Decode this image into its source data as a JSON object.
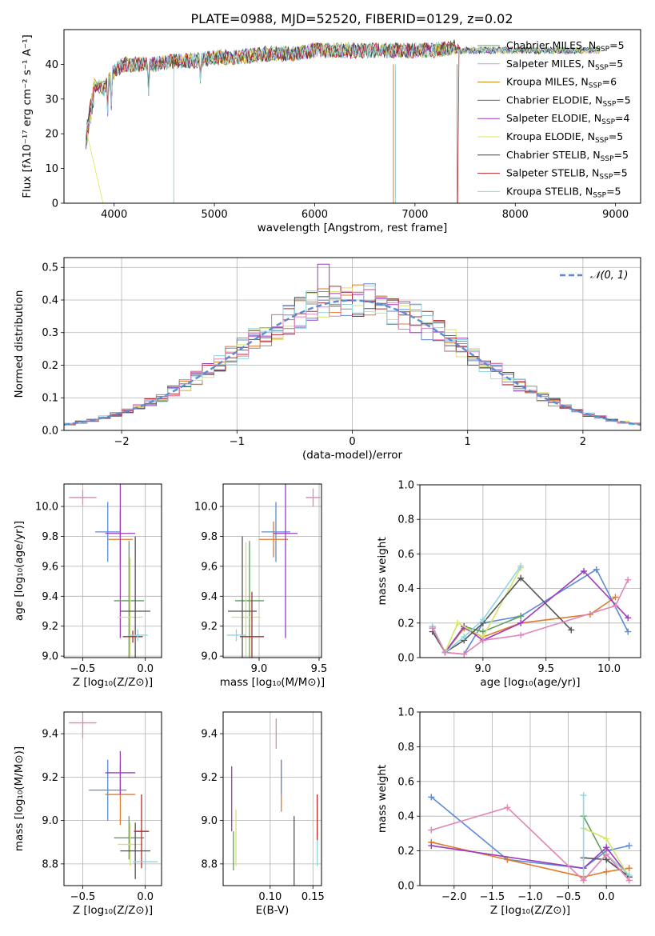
{
  "figure": {
    "title": "PLATE=0988, MJD=52520, FIBERID=0129, z=0.02"
  },
  "colors": {
    "c0": "#5b8bd6",
    "c1": "#e07a2c",
    "c2": "#5f9e5f",
    "c3": "#9b3bbd",
    "c4": "#d5e36a",
    "c5": "#555555",
    "c6": "#b52a2a",
    "c7": "#8fd6e0",
    "c8": "#e085b5",
    "c9": "#b8860b"
  },
  "chart_data": [
    {
      "id": "spectrum",
      "type": "line",
      "xlabel": "wavelength [Angstrom, rest frame]",
      "ylabel": "Flux [fλ10⁻¹⁷ erg cm⁻² s⁻¹ A⁻¹]",
      "xlim": [
        3500,
        9250
      ],
      "ylim": [
        0,
        50
      ],
      "xticks": [
        4000,
        5000,
        6000,
        7000,
        8000,
        9000
      ],
      "yticks": [
        0,
        10,
        20,
        30,
        40
      ],
      "grid": false,
      "legend_position": "right",
      "approx_continuum": {
        "x": [
          3720,
          3800,
          3900,
          4000,
          4100,
          4200,
          4400,
          4600,
          4800,
          5000,
          5200,
          5500,
          5800,
          6000,
          6300,
          6600,
          6800,
          7000,
          7200,
          7400
        ],
        "y": [
          22,
          34,
          33,
          38,
          40,
          40,
          40,
          41,
          41,
          42,
          42,
          43,
          43,
          44,
          44,
          44,
          44,
          44,
          44,
          45
        ]
      },
      "series": [
        {
          "name": "Chabrier MILES, N_SSP=5",
          "label_main": "Chabrier MILES, N",
          "label_sub": "SSP",
          "label_end": "=5",
          "color": "#5f9e5f"
        },
        {
          "name": "Salpeter MILES, N_SSP=5",
          "label_main": "Salpeter MILES, N",
          "label_sub": "SSP",
          "label_end": "=5",
          "color": "#c79ae0"
        },
        {
          "name": "Kroupa MILES, N_SSP=6",
          "label_main": "Kroupa MILES, N",
          "label_sub": "SSP",
          "label_end": "=6",
          "color": "#b8860b"
        },
        {
          "name": "Chabrier ELODIE, N_SSP=5",
          "label_main": "Chabrier ELODIE, N",
          "label_sub": "SSP",
          "label_end": "=5",
          "color": "#3f7f3f"
        },
        {
          "name": "Salpeter ELODIE, N_SSP=4",
          "label_main": "Salpeter ELODIE, N",
          "label_sub": "SSP",
          "label_end": "=4",
          "color": "#9b3bbd"
        },
        {
          "name": "Kroupa ELODIE, N_SSP=5",
          "label_main": "Kroupa ELODIE, N",
          "label_sub": "SSP",
          "label_end": "=5",
          "color": "#e3e35a"
        },
        {
          "name": "Chabrier STELIB, N_SSP=5",
          "label_main": "Chabrier STELIB, N",
          "label_sub": "SSP",
          "label_end": "=5",
          "color": "#444444"
        },
        {
          "name": "Salpeter STELIB, N_SSP=5",
          "label_main": "Salpeter STELIB, N",
          "label_sub": "SSP",
          "label_end": "=5",
          "color": "#b52a2a"
        },
        {
          "name": "Kroupa STELIB, N_SSP=5",
          "label_main": "Kroupa STELIB, N",
          "label_sub": "SSP",
          "label_end": "=5",
          "color": "#8fd6e0"
        }
      ]
    },
    {
      "id": "residuals",
      "type": "histogram",
      "xlabel": "(data-model)/error",
      "ylabel": "Normed distribution",
      "xlim": [
        -2.5,
        2.5
      ],
      "ylim": [
        0,
        0.53
      ],
      "xticks": [
        -2,
        -1,
        0,
        1,
        2
      ],
      "yticks": [
        0.0,
        0.1,
        0.2,
        0.3,
        0.4,
        0.5
      ],
      "grid": true,
      "bin_width": 0.1,
      "bins_from": -2.5,
      "legend": {
        "label": "𝒩(0, 1)",
        "position": "top-right"
      },
      "reference_curve": {
        "name": "N(0,1)",
        "mean": 0,
        "sigma": 1
      },
      "hist_colors": [
        "#5b8bd6",
        "#e07a2c",
        "#8a8a8a",
        "#9b3bbd",
        "#d5e36a",
        "#555555",
        "#b52a2a",
        "#8fd6e0",
        "#e085b5"
      ]
    },
    {
      "id": "age_vs_Z",
      "type": "errorbar",
      "xlabel": "Z [log₁₀(Z/Z⊙)]",
      "ylabel": "age  [log₁₀(age/yr)]",
      "xlim": [
        -0.65,
        0.13
      ],
      "ylim": [
        8.99,
        10.15
      ],
      "xticks": [
        -0.5,
        0.0
      ],
      "yticks": [
        9.0,
        9.2,
        9.4,
        9.6,
        9.8,
        10.0
      ],
      "grid": true,
      "points": [
        {
          "x": -0.5,
          "y": 10.06,
          "xerr": 0.11,
          "yerr": 0.05,
          "color": "#e085b5"
        },
        {
          "x": -0.3,
          "y": 9.83,
          "xerr": 0.1,
          "yerr": 0.2,
          "color": "#5b8bd6"
        },
        {
          "x": -0.2,
          "y": 9.78,
          "xerr": 0.1,
          "yerr": 0.2,
          "color": "#e07a2c"
        },
        {
          "x": -0.2,
          "y": 9.82,
          "xerr": 0.12,
          "yerr": 0.7,
          "color": "#9b3bbd"
        },
        {
          "x": -0.13,
          "y": 9.37,
          "xerr": 0.12,
          "yerr": 0.4,
          "color": "#5f9e5f"
        },
        {
          "x": -0.12,
          "y": 9.26,
          "xerr": 0.1,
          "yerr": 0.4,
          "color": "#d5e36a"
        },
        {
          "x": -0.08,
          "y": 9.3,
          "xerr": 0.12,
          "yerr": 0.5,
          "color": "#555555"
        },
        {
          "x": -0.1,
          "y": 9.13,
          "xerr": 0.08,
          "yerr": 0.04,
          "color": "#b52a2a"
        },
        {
          "x": -0.06,
          "y": 9.14,
          "xerr": 0.08,
          "yerr": 0.04,
          "color": "#8fd6e0"
        }
      ]
    },
    {
      "id": "age_vs_mass",
      "type": "errorbar",
      "xlabel": "mass [log₁₀(M/M⊙)]",
      "ylabel": "",
      "xlim": [
        8.7,
        9.52
      ],
      "ylim": [
        8.99,
        10.15
      ],
      "xticks": [
        9.0,
        9.5
      ],
      "yticks": [
        9.0,
        9.2,
        9.4,
        9.6,
        9.8,
        10.0
      ],
      "grid": true,
      "points": [
        {
          "x": 9.45,
          "y": 10.06,
          "xerr": 0.06,
          "yerr": 0.06,
          "color": "#e085b5"
        },
        {
          "x": 9.14,
          "y": 9.83,
          "xerr": 0.12,
          "yerr": 0.2,
          "color": "#5b8bd6"
        },
        {
          "x": 9.12,
          "y": 9.78,
          "xerr": 0.12,
          "yerr": 0.12,
          "color": "#e07a2c"
        },
        {
          "x": 9.22,
          "y": 9.82,
          "xerr": 0.1,
          "yerr": 0.7,
          "color": "#9b3bbd"
        },
        {
          "x": 8.92,
          "y": 9.37,
          "xerr": 0.12,
          "yerr": 0.4,
          "color": "#5f9e5f"
        },
        {
          "x": 8.89,
          "y": 9.26,
          "xerr": 0.12,
          "yerr": 0.5,
          "color": "#d5e36a"
        },
        {
          "x": 8.86,
          "y": 9.3,
          "xerr": 0.12,
          "yerr": 0.5,
          "color": "#555555"
        },
        {
          "x": 8.94,
          "y": 9.13,
          "xerr": 0.1,
          "yerr": 0.3,
          "color": "#b52a2a"
        },
        {
          "x": 8.81,
          "y": 9.14,
          "xerr": 0.08,
          "yerr": 0.04,
          "color": "#8fd6e0"
        }
      ]
    },
    {
      "id": "weight_vs_age",
      "type": "line",
      "xlabel": "age  [log₁₀(age/yr)]",
      "ylabel": "mass weight",
      "xlim": [
        8.5,
        10.25
      ],
      "ylim": [
        0,
        1.0
      ],
      "xticks": [
        9.0,
        9.5,
        10.0
      ],
      "yticks": [
        0.0,
        0.2,
        0.4,
        0.6,
        0.8,
        1.0
      ],
      "grid": true,
      "series": [
        {
          "color": "#5b8bd6",
          "x": [
            8.6,
            8.7,
            8.85,
            9.0,
            9.3,
            9.9,
            10.15
          ],
          "y": [
            0.18,
            0.03,
            0.02,
            0.2,
            0.24,
            0.51,
            0.15
          ]
        },
        {
          "color": "#e07a2c",
          "x": [
            8.6,
            8.7,
            8.85,
            9.0,
            9.3,
            9.85,
            10.05
          ],
          "y": [
            0.17,
            0.03,
            0.17,
            0.12,
            0.2,
            0.25,
            0.35
          ]
        },
        {
          "color": "#5f9e5f",
          "x": [
            8.6,
            8.7,
            8.85,
            9.0,
            9.3
          ],
          "y": [
            0.17,
            0.03,
            0.18,
            0.15,
            0.24
          ]
        },
        {
          "color": "#9b3bbd",
          "x": [
            8.6,
            8.7,
            8.85,
            9.0,
            9.3,
            9.8,
            10.15
          ],
          "y": [
            0.17,
            0.03,
            0.18,
            0.1,
            0.2,
            0.5,
            0.23
          ]
        },
        {
          "color": "#d5e36a",
          "x": [
            8.6,
            8.7,
            8.8,
            9.0,
            9.3
          ],
          "y": [
            0.18,
            0.03,
            0.2,
            0.12,
            0.52
          ]
        },
        {
          "color": "#555555",
          "x": [
            8.6,
            8.7,
            8.85,
            9.0,
            9.3,
            9.7
          ],
          "y": [
            0.15,
            0.03,
            0.1,
            0.2,
            0.46,
            0.16
          ]
        },
        {
          "color": "#8fd6e0",
          "x": [
            8.6,
            8.7,
            8.85,
            9.0,
            9.3
          ],
          "y": [
            0.18,
            0.03,
            0.12,
            0.22,
            0.53
          ]
        },
        {
          "color": "#e085b5",
          "x": [
            8.6,
            8.7,
            8.85,
            9.0,
            9.3,
            10.05,
            10.15
          ],
          "y": [
            0.17,
            0.03,
            0.02,
            0.1,
            0.13,
            0.3,
            0.45
          ]
        }
      ]
    },
    {
      "id": "mass_vs_Z",
      "type": "errorbar",
      "xlabel": "Z [log₁₀(Z/Z⊙)]",
      "ylabel": "mass [log₁₀(M/M⊙)]",
      "xlim": [
        -0.65,
        0.13
      ],
      "ylim": [
        8.7,
        9.5
      ],
      "xticks": [
        -0.5,
        0.0
      ],
      "yticks": [
        8.8,
        9.0,
        9.2,
        9.4
      ],
      "grid": true,
      "points": [
        {
          "x": -0.5,
          "y": 9.45,
          "xerr": 0.11,
          "yerr": 0.07,
          "color": "#e085b5"
        },
        {
          "x": -0.3,
          "y": 9.14,
          "xerr": 0.15,
          "yerr": 0.14,
          "color": "#5b8bd6"
        },
        {
          "x": -0.2,
          "y": 9.12,
          "xerr": 0.12,
          "yerr": 0.14,
          "color": "#e07a2c"
        },
        {
          "x": -0.2,
          "y": 9.22,
          "xerr": 0.12,
          "yerr": 0.1,
          "color": "#9b3bbd"
        },
        {
          "x": -0.13,
          "y": 8.92,
          "xerr": 0.12,
          "yerr": 0.1,
          "color": "#5f9e5f"
        },
        {
          "x": -0.12,
          "y": 8.89,
          "xerr": 0.1,
          "yerr": 0.1,
          "color": "#d5e36a"
        },
        {
          "x": -0.08,
          "y": 8.86,
          "xerr": 0.12,
          "yerr": 0.13,
          "color": "#555555"
        },
        {
          "x": -0.03,
          "y": 8.95,
          "xerr": 0.06,
          "yerr": 0.17,
          "color": "#b52a2a"
        },
        {
          "x": 0.0,
          "y": 8.81,
          "xerr": 0.1,
          "yerr": 0.04,
          "color": "#8fd6e0"
        }
      ]
    },
    {
      "id": "mass_vs_EBV",
      "type": "errorbar",
      "xlabel": "E(B-V)",
      "ylabel": "",
      "xlim": [
        0.045,
        0.16
      ],
      "ylim": [
        8.7,
        9.5
      ],
      "xticks": [
        0.1,
        0.15
      ],
      "yticks": [
        8.8,
        9.0,
        9.2,
        9.4
      ],
      "grid": true,
      "points": [
        {
          "x": 0.107,
          "y": 9.4,
          "xerr": 0,
          "yerr": 0.07,
          "color": "#e085b5"
        },
        {
          "x": 0.113,
          "y": 9.16,
          "xerr": 0,
          "yerr": 0.12,
          "color": "#e07a2c"
        },
        {
          "x": 0.113,
          "y": 9.2,
          "xerr": 0,
          "yerr": 0.08,
          "color": "#5b8bd6"
        },
        {
          "x": 0.055,
          "y": 9.1,
          "xerr": 0,
          "yerr": 0.15,
          "color": "#9b3bbd"
        },
        {
          "x": 0.06,
          "y": 8.92,
          "xerr": 0,
          "yerr": 0.13,
          "color": "#d5e36a"
        },
        {
          "x": 0.057,
          "y": 8.86,
          "xerr": 0,
          "yerr": 0.09,
          "color": "#5f9e5f"
        },
        {
          "x": 0.128,
          "y": 8.86,
          "xerr": 0,
          "yerr": 0.16,
          "color": "#555555"
        },
        {
          "x": 0.155,
          "y": 9.01,
          "xerr": 0,
          "yerr": 0.11,
          "color": "#b52a2a"
        },
        {
          "x": 0.155,
          "y": 8.85,
          "xerr": 0,
          "yerr": 0.06,
          "color": "#8fd6e0"
        }
      ]
    },
    {
      "id": "weight_vs_Z",
      "type": "line",
      "xlabel": "Z [log₁₀(Z/Z⊙)]",
      "ylabel": "mass weight",
      "xlim": [
        -2.45,
        0.45
      ],
      "ylim": [
        0,
        1.0
      ],
      "xticks": [
        -2.0,
        -1.5,
        -1.0,
        -0.5,
        0.0
      ],
      "yticks": [
        0.0,
        0.2,
        0.4,
        0.6,
        0.8,
        1.0
      ],
      "grid": true,
      "series": [
        {
          "color": "#5b8bd6",
          "x": [
            -2.3,
            -1.3,
            -0.3,
            0.0,
            0.3
          ],
          "y": [
            0.51,
            0.15,
            0.1,
            0.2,
            0.23
          ]
        },
        {
          "color": "#e07a2c",
          "x": [
            -2.3,
            -1.3,
            -0.3,
            0.0,
            0.3
          ],
          "y": [
            0.25,
            0.15,
            0.05,
            0.08,
            0.1
          ]
        },
        {
          "color": "#5f9e5f",
          "x": [
            -0.3,
            0.0,
            0.3
          ],
          "y": [
            0.4,
            0.15,
            0.05
          ]
        },
        {
          "color": "#9b3bbd",
          "x": [
            -2.3,
            -0.3,
            0.0,
            0.3
          ],
          "y": [
            0.23,
            0.1,
            0.22,
            0.05
          ]
        },
        {
          "color": "#d5e36a",
          "x": [
            -0.3,
            0.0,
            0.3
          ],
          "y": [
            0.33,
            0.27,
            0.05
          ]
        },
        {
          "color": "#555555",
          "x": [
            -0.3,
            0.0,
            0.3
          ],
          "y": [
            0.16,
            0.15,
            0.05
          ]
        },
        {
          "color": "#8fd6e0",
          "x": [
            -0.3,
            -0.3,
            0.0,
            0.3
          ],
          "y": [
            0.52,
            0.03,
            0.18,
            0.06
          ]
        },
        {
          "color": "#e085b5",
          "x": [
            -2.3,
            -1.3,
            -0.3,
            0.0,
            0.3
          ],
          "y": [
            0.32,
            0.45,
            0.03,
            0.18,
            0.03
          ]
        }
      ]
    }
  ]
}
